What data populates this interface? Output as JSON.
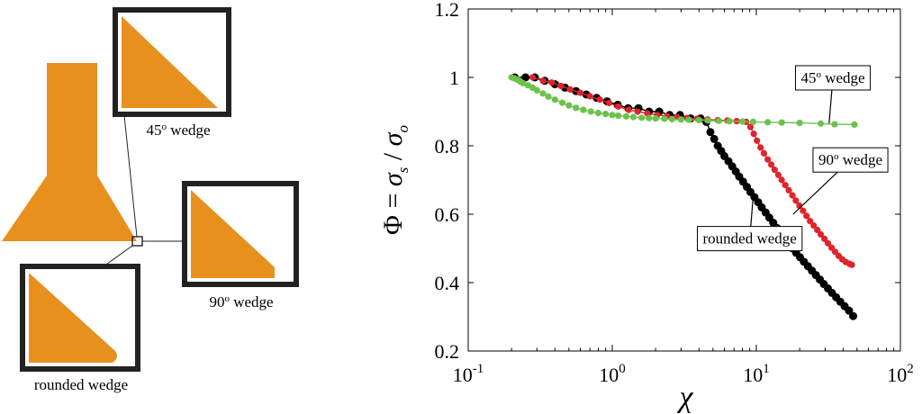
{
  "schematic": {
    "fill_color": "#E8901E",
    "frame_color": "#222222",
    "insets": [
      {
        "id": "wedge-45",
        "label": "45",
        "sup": "o",
        "suffix": " wedge"
      },
      {
        "id": "wedge-90",
        "label": "90",
        "sup": "o",
        "suffix": " wedge"
      },
      {
        "id": "wedge-rounded",
        "label": "rounded wedge",
        "sup": "",
        "suffix": ""
      }
    ]
  },
  "chart_data": {
    "type": "scatter",
    "x_scale": "log",
    "xlim": [
      0.1,
      100
    ],
    "ylim": [
      0.2,
      1.2
    ],
    "xticks": [
      0.1,
      1,
      10,
      100
    ],
    "xtick_labels": [
      {
        "base": "10",
        "exp": "-1"
      },
      {
        "base": "10",
        "exp": "0"
      },
      {
        "base": "10",
        "exp": "1"
      },
      {
        "base": "10",
        "exp": "2"
      }
    ],
    "yticks": [
      0.2,
      0.4,
      0.6,
      0.8,
      1,
      1.2
    ],
    "ytick_labels": [
      "0.2",
      "0.4",
      "0.6",
      "0.8",
      "1",
      "1.2"
    ],
    "xlabel": "χ",
    "ylabel": {
      "lead": "Φ = ",
      "num": "σ",
      "num_sub": "s",
      "slash": " / ",
      "den": "σ",
      "den_sub": "o"
    },
    "grid": false,
    "series": [
      {
        "id": "rounded",
        "color": "#000000",
        "marker_size": 4.5,
        "x": [
          0.21,
          0.25,
          0.29,
          0.34,
          0.4,
          0.47,
          0.56,
          0.66,
          0.78,
          0.92,
          1.09,
          1.29,
          1.52,
          1.8,
          2.12,
          2.5,
          2.95,
          3.5,
          4.1,
          4.5,
          4.8,
          5.1,
          5.4,
          5.7,
          6.0,
          6.4,
          6.8,
          7.2,
          7.6,
          8.1,
          8.6,
          9.1,
          9.7,
          10.3,
          10.9,
          11.6,
          12.3,
          13.1,
          13.9,
          14.8,
          15.7,
          16.7,
          17.8,
          18.9,
          20.1,
          21.4,
          22.8,
          24.3,
          25.9,
          27.6,
          29.4,
          31.4,
          33.5,
          35.8,
          38.3,
          41.0,
          44.0,
          47.0
        ],
        "y": [
          1.0,
          1.0,
          1.0,
          0.99,
          0.98,
          0.97,
          0.96,
          0.95,
          0.94,
          0.93,
          0.92,
          0.91,
          0.91,
          0.9,
          0.9,
          0.89,
          0.89,
          0.88,
          0.88,
          0.87,
          0.84,
          0.82,
          0.8,
          0.785,
          0.77,
          0.755,
          0.74,
          0.725,
          0.71,
          0.695,
          0.68,
          0.665,
          0.65,
          0.635,
          0.62,
          0.605,
          0.59,
          0.575,
          0.56,
          0.545,
          0.53,
          0.515,
          0.5,
          0.487,
          0.474,
          0.461,
          0.448,
          0.435,
          0.422,
          0.409,
          0.396,
          0.383,
          0.37,
          0.357,
          0.344,
          0.331,
          0.318,
          0.302
        ]
      },
      {
        "id": "wedge90",
        "color": "#E0242C",
        "marker_size": 3.6,
        "x": [
          0.28,
          0.33,
          0.38,
          0.44,
          0.51,
          0.6,
          0.7,
          0.82,
          0.95,
          1.1,
          1.3,
          1.5,
          1.75,
          2.05,
          2.4,
          2.8,
          3.3,
          3.9,
          4.6,
          5.4,
          6.3,
          7.3,
          8.5,
          9.1,
          9.6,
          10.1,
          10.7,
          11.3,
          12.0,
          12.7,
          13.4,
          14.2,
          15.0,
          15.9,
          16.8,
          17.8,
          18.8,
          19.9,
          21.1,
          22.3,
          23.6,
          25.0,
          26.5,
          28.0,
          29.7,
          31.4,
          33.3,
          35.2,
          37.3,
          39.5,
          41.8,
          44.3,
          46.0
        ],
        "y": [
          1.0,
          0.99,
          0.985,
          0.975,
          0.965,
          0.955,
          0.945,
          0.935,
          0.925,
          0.915,
          0.905,
          0.9,
          0.895,
          0.89,
          0.887,
          0.884,
          0.881,
          0.879,
          0.877,
          0.875,
          0.874,
          0.872,
          0.87,
          0.855,
          0.835,
          0.815,
          0.795,
          0.778,
          0.76,
          0.745,
          0.73,
          0.715,
          0.7,
          0.685,
          0.67,
          0.655,
          0.64,
          0.625,
          0.61,
          0.595,
          0.58,
          0.567,
          0.554,
          0.541,
          0.528,
          0.515,
          0.502,
          0.49,
          0.478,
          0.468,
          0.46,
          0.455,
          0.452
        ]
      },
      {
        "id": "wedge45",
        "color": "#6CC24A",
        "marker_size": 3.6,
        "x": [
          0.2,
          0.21,
          0.22,
          0.23,
          0.24,
          0.26,
          0.28,
          0.3,
          0.33,
          0.36,
          0.4,
          0.45,
          0.5,
          0.56,
          0.63,
          0.71,
          0.8,
          0.9,
          1.0,
          1.1,
          1.25,
          1.4,
          1.6,
          1.8,
          2.0,
          2.3,
          2.6,
          3.0,
          3.4,
          4.0,
          4.6,
          5.5,
          6.5,
          8.0,
          9.5,
          12.0,
          15.0,
          20.0,
          28.0,
          35.0,
          48.0
        ],
        "y": [
          1.0,
          0.997,
          0.993,
          0.988,
          0.983,
          0.977,
          0.97,
          0.962,
          0.953,
          0.944,
          0.935,
          0.926,
          0.918,
          0.911,
          0.905,
          0.9,
          0.896,
          0.893,
          0.89,
          0.888,
          0.886,
          0.884,
          0.882,
          0.881,
          0.88,
          0.879,
          0.878,
          0.877,
          0.876,
          0.875,
          0.874,
          0.873,
          0.872,
          0.871,
          0.87,
          0.869,
          0.868,
          0.867,
          0.865,
          0.863,
          0.862
        ]
      }
    ],
    "annotations": [
      {
        "id": "ann-45",
        "label": "45",
        "sup": "o",
        "suffix": " wedge",
        "box": {
          "x": 34,
          "y": 1.0
        },
        "target_series": "wedge45",
        "target": {
          "x": 32,
          "y": 0.866
        }
      },
      {
        "id": "ann-90",
        "label": "90",
        "sup": "o",
        "suffix": " wedge",
        "box": {
          "x": 45,
          "y": 0.76
        },
        "target_series": "wedge90",
        "target": {
          "x": 18,
          "y": 0.6
        }
      },
      {
        "id": "ann-rounded",
        "label": "rounded wedge",
        "sup": "",
        "suffix": "",
        "box": {
          "x": 9,
          "y": 0.53
        },
        "target_series": "rounded",
        "target": {
          "x": 9.5,
          "y": 0.65
        }
      }
    ]
  }
}
